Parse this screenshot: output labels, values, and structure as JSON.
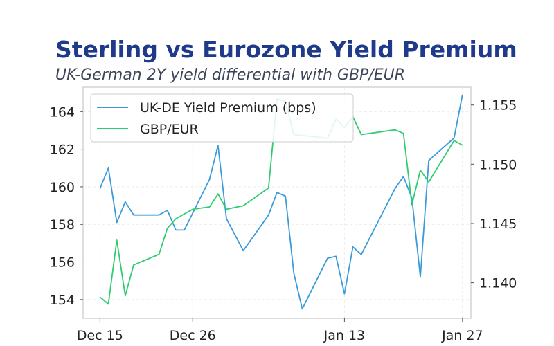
{
  "chart_data": {
    "type": "line",
    "title": "Sterling vs Eurozone Yield Premium",
    "subtitle": "UK-German 2Y yield differential with GBP/EUR",
    "xlabel": "",
    "ylabel": "",
    "x_tick_labels": [
      "Dec 15",
      "Dec 26",
      "Jan 13",
      "Jan 27"
    ],
    "x_tick_dates": [
      "2024-12-15",
      "2024-12-26",
      "2025-01-13",
      "2025-01-27"
    ],
    "y_left": {
      "ylim": [
        153.0,
        165.3
      ],
      "ticks": [
        "154",
        "156",
        "158",
        "160",
        "162",
        "164"
      ]
    },
    "y_right": {
      "ylim": [
        1.137,
        1.1565
      ],
      "ticks": [
        "1.140",
        "1.145",
        "1.150",
        "1.155"
      ]
    },
    "grid": true,
    "legend_position": "top-left",
    "series": [
      {
        "name": "UK-DE Yield Premium (bps)",
        "axis": "left",
        "color": "#3b9ad9",
        "points": [
          [
            "2024-12-15",
            159.9
          ],
          [
            "2024-12-16",
            161.0
          ],
          [
            "2024-12-17",
            158.1
          ],
          [
            "2024-12-18",
            159.2
          ],
          [
            "2024-12-19",
            158.5
          ],
          [
            "2024-12-22",
            158.5
          ],
          [
            "2024-12-23",
            158.75
          ],
          [
            "2024-12-24",
            157.7
          ],
          [
            "2024-12-25",
            157.7
          ],
          [
            "2024-12-28",
            160.4
          ],
          [
            "2024-12-29",
            162.2
          ],
          [
            "2024-12-30",
            158.3
          ],
          [
            "2025-01-01",
            156.6
          ],
          [
            "2025-01-04",
            158.5
          ],
          [
            "2025-01-05",
            159.7
          ],
          [
            "2025-01-06",
            159.5
          ],
          [
            "2025-01-07",
            155.4
          ],
          [
            "2025-01-08",
            153.5
          ],
          [
            "2025-01-11",
            156.2
          ],
          [
            "2025-01-12",
            156.3
          ],
          [
            "2025-01-13",
            154.3
          ],
          [
            "2025-01-14",
            156.8
          ],
          [
            "2025-01-15",
            156.4
          ],
          [
            "2025-01-19",
            159.9
          ],
          [
            "2025-01-20",
            160.55
          ],
          [
            "2025-01-21",
            159.4
          ],
          [
            "2025-01-22",
            155.2
          ],
          [
            "2025-01-23",
            161.4
          ],
          [
            "2025-01-26",
            162.6
          ],
          [
            "2025-01-27",
            164.9
          ]
        ]
      },
      {
        "name": "GBP/EUR",
        "axis": "right",
        "color": "#2ecc71",
        "points": [
          [
            "2024-12-15",
            1.1388
          ],
          [
            "2024-12-16",
            1.1382
          ],
          [
            "2024-12-17",
            1.1436
          ],
          [
            "2024-12-18",
            1.1389
          ],
          [
            "2024-12-19",
            1.1415
          ],
          [
            "2024-12-22",
            1.1424
          ],
          [
            "2024-12-23",
            1.1446
          ],
          [
            "2024-12-24",
            1.1454
          ],
          [
            "2024-12-26",
            1.1462
          ],
          [
            "2024-12-28",
            1.1464
          ],
          [
            "2024-12-29",
            1.1475
          ],
          [
            "2024-12-30",
            1.1462
          ],
          [
            "2025-01-01",
            1.1465
          ],
          [
            "2025-01-04",
            1.148
          ],
          [
            "2025-01-05",
            1.1555
          ],
          [
            "2025-01-06",
            1.1553
          ],
          [
            "2025-01-07",
            1.1525
          ],
          [
            "2025-01-11",
            1.1522
          ],
          [
            "2025-01-12",
            1.1538
          ],
          [
            "2025-01-13",
            1.1531
          ],
          [
            "2025-01-14",
            1.154
          ],
          [
            "2025-01-15",
            1.1525
          ],
          [
            "2025-01-19",
            1.1529
          ],
          [
            "2025-01-20",
            1.1526
          ],
          [
            "2025-01-21",
            1.1466
          ],
          [
            "2025-01-22",
            1.1495
          ],
          [
            "2025-01-23",
            1.1485
          ],
          [
            "2025-01-26",
            1.152
          ],
          [
            "2025-01-27",
            1.1516
          ]
        ]
      }
    ]
  }
}
